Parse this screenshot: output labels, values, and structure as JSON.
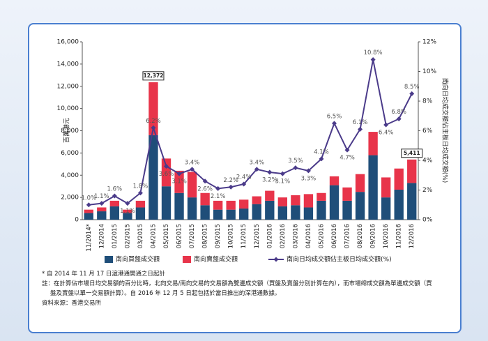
{
  "chart_data": {
    "type": "bar-line",
    "y_label": "百萬港元",
    "y2_label": "南向日均成交額佔主板日均成交額(%)",
    "categories": [
      "11/2014*",
      "12/2014",
      "01/2015",
      "02/2015",
      "03/2015",
      "04/2015",
      "05/2015",
      "06/2015",
      "07/2015",
      "08/2015",
      "09/2015",
      "10/2015",
      "11/2015",
      "12/2015",
      "01/2016",
      "02/2016",
      "03/2016",
      "04/2016",
      "05/2016",
      "06/2016",
      "07/2016",
      "08/2016",
      "09/2016",
      "10/2016",
      "11/2016",
      "12/2016"
    ],
    "series": [
      {
        "name": "南向買盤成交額",
        "type": "bar",
        "color": "#1f4e79",
        "values": [
          600,
          750,
          1200,
          600,
          1100,
          7600,
          3000,
          2400,
          2000,
          1300,
          900,
          900,
          1000,
          1400,
          1700,
          1200,
          1300,
          1100,
          1700,
          3100,
          1700,
          2500,
          5800,
          2000,
          2700,
          3300
        ]
      },
      {
        "name": "南向賣盤成交額",
        "type": "bar",
        "color": "#e8344a",
        "values": [
          300,
          350,
          500,
          300,
          600,
          4772,
          2500,
          2000,
          2300,
          1100,
          800,
          800,
          800,
          700,
          900,
          800,
          900,
          1200,
          700,
          800,
          1200,
          1600,
          2100,
          1800,
          1900,
          2111
        ]
      },
      {
        "name": "南向日均成交額佔主板日均成交額(%)",
        "type": "line",
        "axis": "y2",
        "color": "#4b3b8a",
        "values": [
          1.0,
          1.1,
          1.6,
          1.1,
          1.8,
          6.2,
          3.6,
          3.1,
          3.4,
          2.6,
          2.1,
          2.2,
          2.4,
          3.4,
          3.2,
          3.1,
          3.5,
          3.3,
          4.1,
          6.5,
          4.7,
          6.1,
          10.8,
          6.4,
          6.8,
          8.5
        ],
        "value_labels": [
          "1.0%",
          "1.1%",
          "1.6%",
          "1.1%",
          "1.8%",
          "6.2%",
          "3.6%",
          "3.1%",
          "3.4%",
          "2.6%",
          "2.1%",
          "2.2%",
          "2.4%",
          "3.4%",
          "3.2%",
          "3.1%",
          "3.5%",
          "3.3%",
          "4.1%",
          "6.5%",
          "4.7%",
          "6.1%",
          "10.8%",
          "6.4%",
          "6.8%",
          "8.5%"
        ]
      }
    ],
    "annotations": [
      {
        "x": "04/2015",
        "value": 12372,
        "label": "12,372"
      },
      {
        "x": "12/2016",
        "value": 5411,
        "label": "5,411"
      }
    ],
    "ylim": [
      0,
      16000
    ],
    "yticks": [
      0,
      {
        "value": 2000,
        "label": "2,000"
      },
      {
        "value": 4000,
        "label": "4,000"
      },
      {
        "value": 6000,
        "label": "6,000"
      },
      {
        "value": 8000,
        "label": "8,000"
      },
      {
        "value": 10000,
        "label": "10,000"
      },
      {
        "value": 12000,
        "label": "12,000"
      },
      {
        "value": 14000,
        "label": "14,000"
      },
      {
        "value": 16000,
        "label": "16,000"
      }
    ],
    "y2lim": [
      0,
      12
    ],
    "y2ticks": [
      {
        "value": 0,
        "label": "0%"
      },
      {
        "value": 2,
        "label": "2%"
      },
      {
        "value": 4,
        "label": "4%"
      },
      {
        "value": 6,
        "label": "6%"
      },
      {
        "value": 8,
        "label": "8%"
      },
      {
        "value": 10,
        "label": "10%"
      },
      {
        "value": 12,
        "label": "12%"
      }
    ],
    "notes": [
      "* 自 2014 年 11 月 17 日滬港通開通之日起計",
      "註：在計算佔市場日均交易額的百分比時，北向交易/南向交易的交易額為雙邊成交額（買盤及賣盤分別計算在內），而市場總成交額為單邊成交額（買盤及賣盤以單一交易額計算）。自 2016 年 12 月 5 日起包括於當日推出的深港通數據。",
      "資料來源：香港交易所"
    ]
  }
}
